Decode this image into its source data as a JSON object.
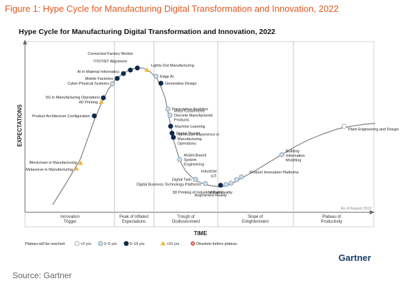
{
  "figure_title": "Figure 1: Hype Cycle for Manufacturing Digital Transformation and Innovation, 2022",
  "source": "Source: Gartner",
  "brand": "Gartner",
  "colors": {
    "figure_title": "#e2571e",
    "curve": "#7f7f7f",
    "lt2": "#ffffff",
    "y2to5": "#c9dcec",
    "y5to10": "#0f2a4f",
    "gt10": "#f0b43a",
    "obsolete": "#d93a2b"
  },
  "chart_data": {
    "type": "line",
    "title": "Hype Cycle for Manufacturing Digital Transformation and Innovation, 2022",
    "xlabel": "TIME",
    "ylabel": "EXPECTATIONS",
    "note": "As of August 2022",
    "phases": [
      "Innovation\nTrigger",
      "Peak of Inflated\nExpectations",
      "Trough of\nDisillusionment",
      "Slope of\nEnlightenment",
      "Plateau of\nProductivity"
    ],
    "legend": {
      "title": "Plateau will be reached:",
      "items": [
        {
          "key": "lt2",
          "label": "<2 yrs."
        },
        {
          "key": "y2to5",
          "label": "2–5 yrs."
        },
        {
          "key": "y5to10",
          "label": "5–10 yrs."
        },
        {
          "key": "gt10",
          "label": ">10 yrs."
        },
        {
          "key": "obsolete",
          "label": "Obsolete before plateau"
        }
      ]
    },
    "technologies": [
      {
        "name": "Blockchain in Manufacturing",
        "x": 8.0,
        "y": 17.0,
        "plateau": "gt10"
      },
      {
        "name": "Metaverse in Manufacturing",
        "x": 7.4,
        "y": 13.0,
        "plateau": "gt10"
      },
      {
        "name": "Product Architecture Configuration",
        "x": 10.0,
        "y": 51.0,
        "plateau": "y5to10"
      },
      {
        "name": "4D Printing",
        "x": 11.0,
        "y": 61.0,
        "plateau": "gt10"
      },
      {
        "name": "5G in Manufacturing Operations",
        "x": 11.3,
        "y": 64.0,
        "plateau": "y5to10"
      },
      {
        "name": "Cyber-Physical Systems",
        "x": 12.6,
        "y": 74.0,
        "plateau": "y2to5"
      },
      {
        "name": "Mobile Factories",
        "x": 13.3,
        "y": 78.0,
        "plateau": "y5to10"
      },
      {
        "name": "AI in Material Informatics",
        "x": 14.2,
        "y": 81.5,
        "plateau": "y5to10"
      },
      {
        "name": "IT/OT/ET Alignment",
        "x": 15.2,
        "y": 84.0,
        "plateau": "y5to10"
      },
      {
        "name": "Connected Factory Worker",
        "x": 16.2,
        "y": 85.5,
        "plateau": "y5to10"
      },
      {
        "name": "Lights-Out Manufacturing",
        "x": 17.6,
        "y": 84.0,
        "plateau": "gt10"
      },
      {
        "name": "Edge AI",
        "x": 18.9,
        "y": 79.5,
        "plateau": "y2to5"
      },
      {
        "name": "Generative Design",
        "x": 19.6,
        "y": 74.5,
        "plateau": "y5to10"
      },
      {
        "name": "Prescriptive Analytics",
        "x": 20.6,
        "y": 56.0,
        "plateau": "y2to5"
      },
      {
        "name": "Mass Customized Discrete Manufactured Products",
        "x": 20.9,
        "y": 51.5,
        "plateau": "y2to5"
      },
      {
        "name": "Machine Learning",
        "x": 21.0,
        "y": 43.5,
        "plateau": "y5to10"
      },
      {
        "name": "Digital Thread",
        "x": 21.2,
        "y": 38.5,
        "plateau": "y5to10"
      },
      {
        "name": "Immersive Experience in Manufacturing Operations",
        "x": 21.4,
        "y": 35.5,
        "plateau": "y5to10"
      },
      {
        "name": "Model-Based System Engineering",
        "x": 22.3,
        "y": 19.5,
        "plateau": "y2to5"
      },
      {
        "name": "Digital Twin",
        "x": 24.6,
        "y": 5.2,
        "plateau": "y2to5"
      },
      {
        "name": "Digital Business Technology Platforms",
        "x": 26.0,
        "y": 2.2,
        "plateau": "y2to5"
      },
      {
        "name": "Industrial IoT",
        "x": 28.2,
        "y": 1.0,
        "plateau": "y5to10"
      },
      {
        "name": "3D Printing of Industrial Parts",
        "x": 29.0,
        "y": 1.5,
        "plateau": "y2to5"
      },
      {
        "name": "Augmented Reality",
        "x": 29.7,
        "y": 2.5,
        "plateau": "y2to5"
      },
      {
        "name": "Virtual Reality",
        "x": 30.5,
        "y": 5.0,
        "plateau": "y2to5"
      },
      {
        "name": "Product Innovation Platforms",
        "x": 31.2,
        "y": 7.0,
        "plateau": "y2to5"
      },
      {
        "name": "Building Information Modeling",
        "x": 37.0,
        "y": 23.0,
        "plateau": "y2to5"
      },
      {
        "name": "Plant Engineering and Design",
        "x": 46.0,
        "y": 43.5,
        "plateau": "lt2"
      }
    ]
  }
}
